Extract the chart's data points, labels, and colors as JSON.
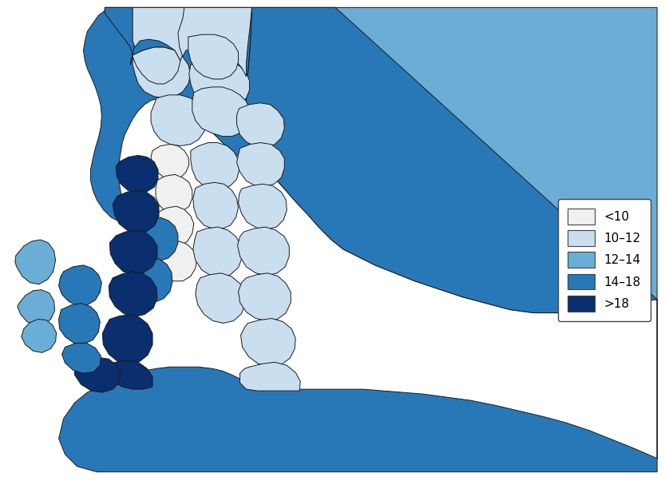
{
  "legend_labels": [
    "<10",
    "10–12",
    "12–14",
    "14–18",
    ">18"
  ],
  "legend_colors": [
    "#f0f0f0",
    "#c9dff0",
    "#6aaed6",
    "#2878b8",
    "#0a2e6e"
  ],
  "background_color": "#ffffff",
  "edge_color": "#1a1a1a",
  "edge_width": 0.7,
  "figsize": [
    8.33,
    6.02
  ],
  "dpi": 100
}
